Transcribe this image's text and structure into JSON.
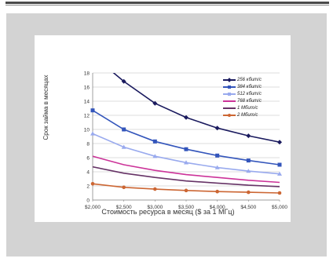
{
  "chart_data": {
    "type": "line",
    "xlabel": "Стоимость ресурса в месяц ($ за 1 МГц)",
    "ylabel": "Срок займа в месяцах",
    "x": [
      2000,
      2500,
      3000,
      3500,
      4000,
      4500,
      5000
    ],
    "x_tick_labels": [
      "$2,000",
      "$2,500",
      "$3,000",
      "$3,500",
      "$4,000",
      "$4,500",
      "$5,000"
    ],
    "y_ticks": [
      0,
      2,
      4,
      6,
      8,
      10,
      12,
      14,
      16,
      18
    ],
    "xlim": [
      2000,
      5000
    ],
    "ylim": [
      0,
      18
    ],
    "grid": true,
    "legend_position": "top-right",
    "series": [
      {
        "name": "256 кбит/с",
        "color": "#1a1a5e",
        "marker": "diamond",
        "values": [
          20.5,
          16.8,
          13.7,
          11.7,
          10.2,
          9.1,
          8.2
        ]
      },
      {
        "name": "384 кбит/с",
        "color": "#3355bb",
        "marker": "square",
        "values": [
          12.7,
          10.0,
          8.3,
          7.2,
          6.3,
          5.6,
          5.0
        ]
      },
      {
        "name": "512 кбит/с",
        "color": "#99aaee",
        "marker": "triangle",
        "values": [
          9.4,
          7.5,
          6.2,
          5.3,
          4.6,
          4.1,
          3.7
        ]
      },
      {
        "name": "768 кбит/с",
        "color": "#cc3399",
        "marker": "none",
        "values": [
          6.2,
          5.0,
          4.2,
          3.6,
          3.2,
          2.8,
          2.5
        ]
      },
      {
        "name": "1 Мбит/с",
        "color": "#663366",
        "marker": "none",
        "values": [
          4.7,
          3.8,
          3.2,
          2.7,
          2.4,
          2.1,
          1.9
        ]
      },
      {
        "name": "2 Мбит/с",
        "color": "#cc6633",
        "marker": "circle",
        "values": [
          2.3,
          1.8,
          1.55,
          1.35,
          1.2,
          1.1,
          1.0
        ]
      }
    ]
  }
}
